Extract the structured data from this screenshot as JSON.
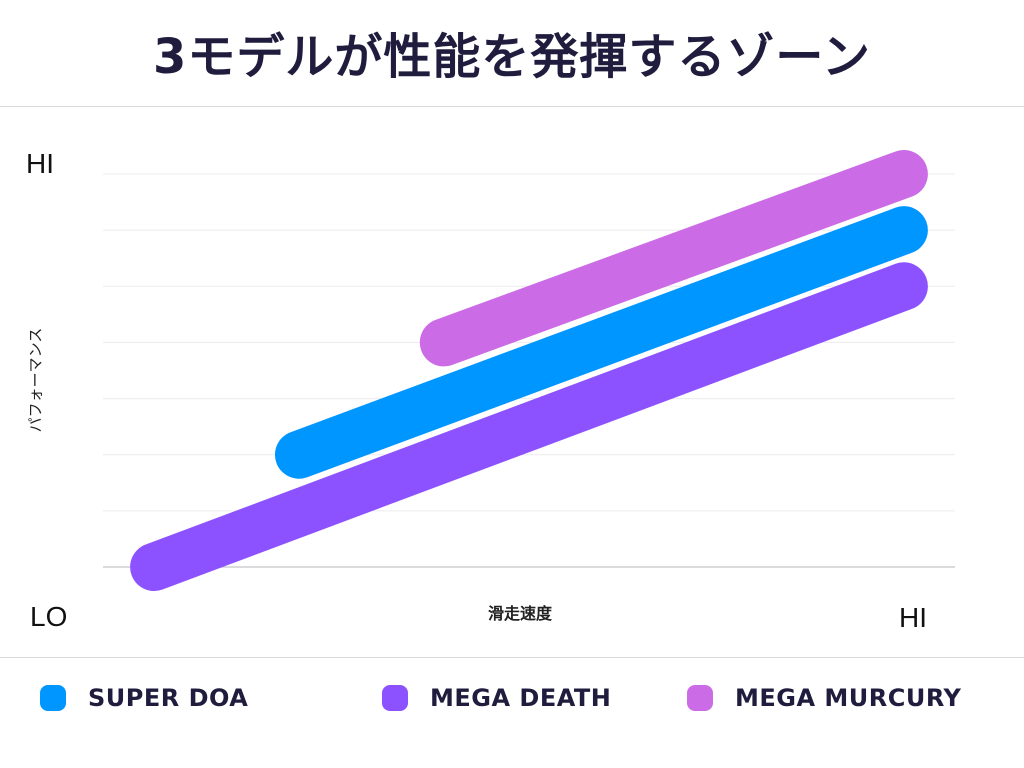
{
  "title": "3モデルが性能を発揮するゾーン",
  "chart_data": {
    "type": "line",
    "title": "3モデルが性能を発揮するゾーン",
    "xlabel": "滑走速度",
    "ylabel": "パフォーマンス",
    "x_tick_labels": {
      "low": "LO",
      "high": "HI"
    },
    "y_tick_labels": {
      "high": "HI"
    },
    "xlim": [
      0,
      1
    ],
    "ylim": [
      0,
      7
    ],
    "grid": true,
    "legend_position": "bottom",
    "series": [
      {
        "name": "SUPER DOA",
        "color": "#0096ff",
        "x": [
          0.23,
          0.94
        ],
        "y": [
          2.0,
          6.0
        ]
      },
      {
        "name": "MEGA DEATH",
        "color": "#8c52ff",
        "x": [
          0.06,
          0.94
        ],
        "y": [
          0.0,
          5.0
        ]
      },
      {
        "name": "MEGA MURCURY",
        "color": "#cb6ce6",
        "x": [
          0.4,
          0.94
        ],
        "y": [
          4.0,
          7.0
        ]
      }
    ]
  }
}
